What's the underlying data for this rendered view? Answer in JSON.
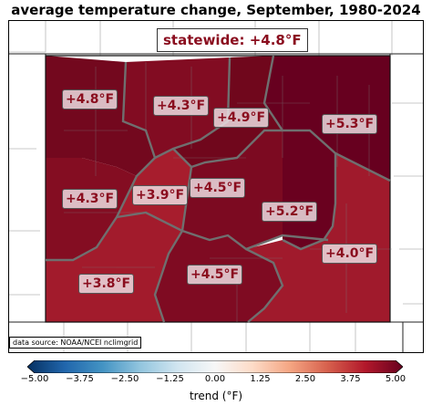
{
  "title": "average temperature change, September, 1980-2024",
  "statewide": "statewide: +4.8°F",
  "source": "data source: NOAA/NCEI nclimgrid",
  "regions": [
    {
      "name": "northwest",
      "label": "+4.8°F",
      "value": 4.8,
      "color": "#73081e"
    },
    {
      "name": "north-central",
      "label": "+4.3°F",
      "value": 4.3,
      "color": "#820c22"
    },
    {
      "name": "north-central-east",
      "label": "+4.9°F",
      "value": 4.9,
      "color": "#70071c"
    },
    {
      "name": "northeast",
      "label": "+5.3°F",
      "value": 5.3,
      "color": "#67001f"
    },
    {
      "name": "west",
      "label": "+4.3°F",
      "value": 4.3,
      "color": "#840d22"
    },
    {
      "name": "central-west",
      "label": "+3.9°F",
      "value": 3.9,
      "color": "#a71d2d"
    },
    {
      "name": "central",
      "label": "+4.5°F",
      "value": 4.5,
      "color": "#7c0a21"
    },
    {
      "name": "east-central",
      "label": "+5.2°F",
      "value": 5.2,
      "color": "#6a011f"
    },
    {
      "name": "southwest",
      "label": "+3.8°F",
      "value": 3.8,
      "color": "#a21b2c"
    },
    {
      "name": "south-central",
      "label": "+4.5°F",
      "value": 4.5,
      "color": "#7f0b22"
    },
    {
      "name": "southeast",
      "label": "+4.0°F",
      "value": 4.0,
      "color": "#a01a2c"
    }
  ],
  "colorbar": {
    "label": "trend (°F)",
    "min": -5.0,
    "max": 5.0,
    "ticks": [
      "−5.00",
      "−3.75",
      "−2.50",
      "−1.25",
      "0.00",
      "1.25",
      "2.50",
      "3.75",
      "5.00"
    ],
    "colors": [
      "#053061",
      "#2166ac",
      "#4393c3",
      "#92c5de",
      "#d1e5f0",
      "#f7f7f7",
      "#fddbc7",
      "#f4a582",
      "#d6604d",
      "#b2182b",
      "#67001f"
    ]
  }
}
